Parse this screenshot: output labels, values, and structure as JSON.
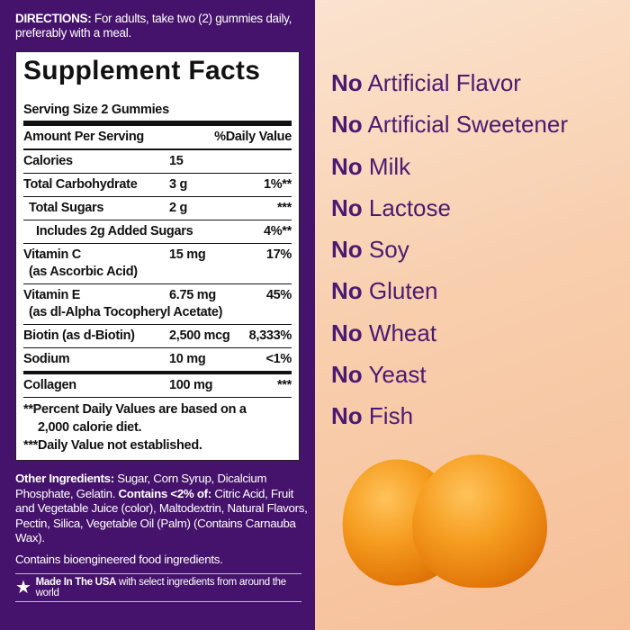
{
  "directions": {
    "label": "DIRECTIONS:",
    "text": " For adults, take two (2) gummies daily, preferably with a meal."
  },
  "facts": {
    "title": "Supplement Facts",
    "serving": "Serving Size 2 Gummies",
    "header": [
      "Amount Per Serving",
      "%Daily Value"
    ],
    "rows": [
      {
        "name": "Calories",
        "amount": "15",
        "dv": ""
      },
      {
        "name": "Total Carbohydrate",
        "amount": "3 g",
        "dv": "1%**"
      },
      {
        "name": "Total Sugars",
        "amount": "2 g",
        "dv": "***"
      },
      {
        "name": "Includes 2g Added Sugars",
        "amount": "",
        "dv": "4%**"
      },
      {
        "name": "Vitamin C",
        "amount": "15 mg",
        "dv": "17%",
        "sub": "(as Ascorbic Acid)"
      },
      {
        "name": "Vitamin E",
        "amount": "6.75 mg",
        "dv": "45%",
        "sub": "(as dl-Alpha Tocopheryl Acetate)"
      },
      {
        "name": "Biotin (as d-Biotin)",
        "amount": "2,500 mcg",
        "dv": "8,333%"
      },
      {
        "name": "Sodium",
        "amount": "10 mg",
        "dv": "<1%"
      },
      {
        "name": "Collagen",
        "amount": "100 mg",
        "dv": "***"
      }
    ],
    "note1": "**Percent Daily Values are based on a",
    "note1b": "2,000 calorie diet.",
    "note2": "***Daily Value not established."
  },
  "other": {
    "label": "Other Ingredients:",
    "text1": " Sugar, Corn Syrup, Dicalcium Phosphate, Gelatin. ",
    "label2": "Contains <2% of:",
    "text2": " Citric Acid, Fruit and Vegetable Juice (color), Maltodextrin, Natural Flavors, Pectin, Silica, Vegetable Oil (Palm) (Contains Carnauba Wax)."
  },
  "bio": "Contains bioengineered food ingredients.",
  "made": {
    "bold": "Made In The USA",
    "text": "with select ingredients from around the world"
  },
  "claims": {
    "prefix": "No",
    "items": [
      "Artificial Flavor",
      "Artificial Sweetener",
      "Milk",
      "Lactose",
      "Soy",
      "Gluten",
      "Wheat",
      "Yeast",
      "Fish"
    ]
  },
  "colors": {
    "purple": "#46136c",
    "peach": "#f8cfae",
    "gummy": "#f59c1e"
  }
}
